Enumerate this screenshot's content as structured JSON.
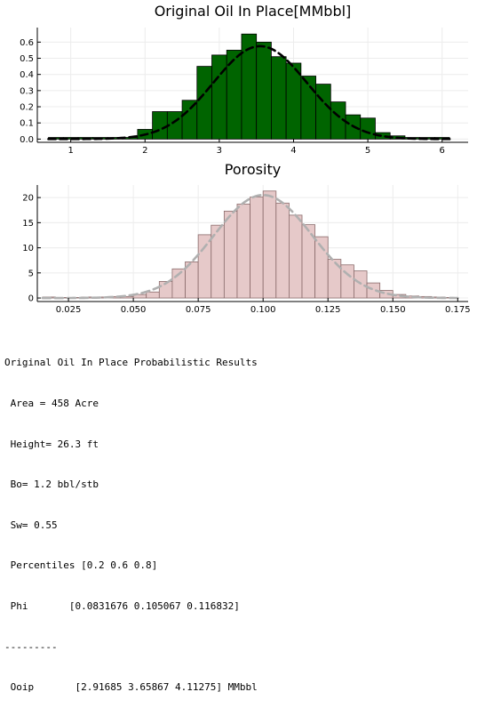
{
  "chart_data": [
    {
      "type": "bar",
      "title": "Original Oil In Place[MMbbl]",
      "xlim": [
        0.55,
        6.35
      ],
      "ylim": [
        -0.02,
        0.69
      ],
      "xticks": [
        "1",
        "2",
        "3",
        "4",
        "5",
        "6"
      ],
      "xtick_values": [
        1,
        2,
        3,
        4,
        5,
        6
      ],
      "yticks": [
        "0.0",
        "0.1",
        "0.2",
        "0.3",
        "0.4",
        "0.5",
        "0.6"
      ],
      "ytick_values": [
        0,
        0.1,
        0.2,
        0.3,
        0.4,
        0.5,
        0.6
      ],
      "bin_edges": [
        0.7,
        0.9,
        1.1,
        1.3,
        1.5,
        1.7,
        1.9,
        2.1,
        2.3,
        2.5,
        2.7,
        2.9,
        3.1,
        3.3,
        3.5,
        3.7,
        3.9,
        4.1,
        4.3,
        4.5,
        4.7,
        4.9,
        5.1,
        5.3,
        5.5,
        5.7,
        5.9,
        6.1
      ],
      "values": [
        0.01,
        0.01,
        0.01,
        0.01,
        0.01,
        0.01,
        0.06,
        0.17,
        0.17,
        0.24,
        0.45,
        0.52,
        0.55,
        0.65,
        0.6,
        0.51,
        0.47,
        0.39,
        0.34,
        0.23,
        0.15,
        0.13,
        0.04,
        0.02,
        0.01,
        0.01,
        0.01
      ],
      "bar_color": "#006400",
      "curve": {
        "style": "dashed",
        "color": "#000000",
        "mean": 3.55,
        "sd": 0.63,
        "peak": 0.575,
        "range": [
          0.7,
          6.1
        ]
      },
      "grid": true
    },
    {
      "type": "bar",
      "title": "Porosity",
      "xlim": [
        0.013,
        0.179
      ],
      "ylim": [
        -0.7,
        22.5
      ],
      "xticks": [
        "0.025",
        "0.050",
        "0.075",
        "0.100",
        "0.125",
        "0.150",
        "0.175"
      ],
      "xtick_values": [
        0.025,
        0.05,
        0.075,
        0.1,
        0.125,
        0.15,
        0.175
      ],
      "yticks": [
        "0",
        "5",
        "10",
        "15",
        "20"
      ],
      "ytick_values": [
        0,
        5,
        10,
        15,
        20
      ],
      "bin_edges": [
        0.015,
        0.02,
        0.025,
        0.03,
        0.035,
        0.04,
        0.045,
        0.05,
        0.055,
        0.06,
        0.065,
        0.07,
        0.075,
        0.08,
        0.085,
        0.09,
        0.095,
        0.1,
        0.105,
        0.11,
        0.115,
        0.12,
        0.125,
        0.13,
        0.135,
        0.14,
        0.145,
        0.15,
        0.155,
        0.16,
        0.165,
        0.17,
        0.175
      ],
      "values": [
        0.2,
        0.1,
        0.1,
        0.2,
        0.2,
        0.3,
        0.3,
        0.7,
        1.2,
        3.3,
        5.8,
        7.2,
        12.6,
        14.5,
        17.3,
        18.7,
        20.1,
        21.3,
        18.9,
        16.5,
        14.6,
        12.2,
        7.7,
        6.6,
        5.4,
        3.0,
        1.5,
        0.7,
        0.4,
        0.3,
        0.2,
        0.1
      ],
      "bar_color": "#e6c9c9",
      "bar_stroke": "#8a6b6b",
      "curve": {
        "style": "dashed",
        "color": "#b0b0b0",
        "mean": 0.1,
        "sd": 0.019,
        "peak": 20.5,
        "range": [
          0.015,
          0.175
        ]
      },
      "grid": true
    }
  ],
  "results": {
    "heading": "Original Oil In Place Probabilistic Results",
    "area": " Area = 458 Acre",
    "height": " Height= 26.3 ft",
    "bo": " Bo= 1.2 bbl/stb",
    "sw": " Sw= 0.55",
    "percentiles": " Percentiles [0.2 0.6 0.8]",
    "phi": " Phi       [0.0831676 0.105067 0.116832]",
    "separator": "---------",
    "ooip": " Ooip       [2.91685 3.65867 4.11275] MMbbl"
  }
}
